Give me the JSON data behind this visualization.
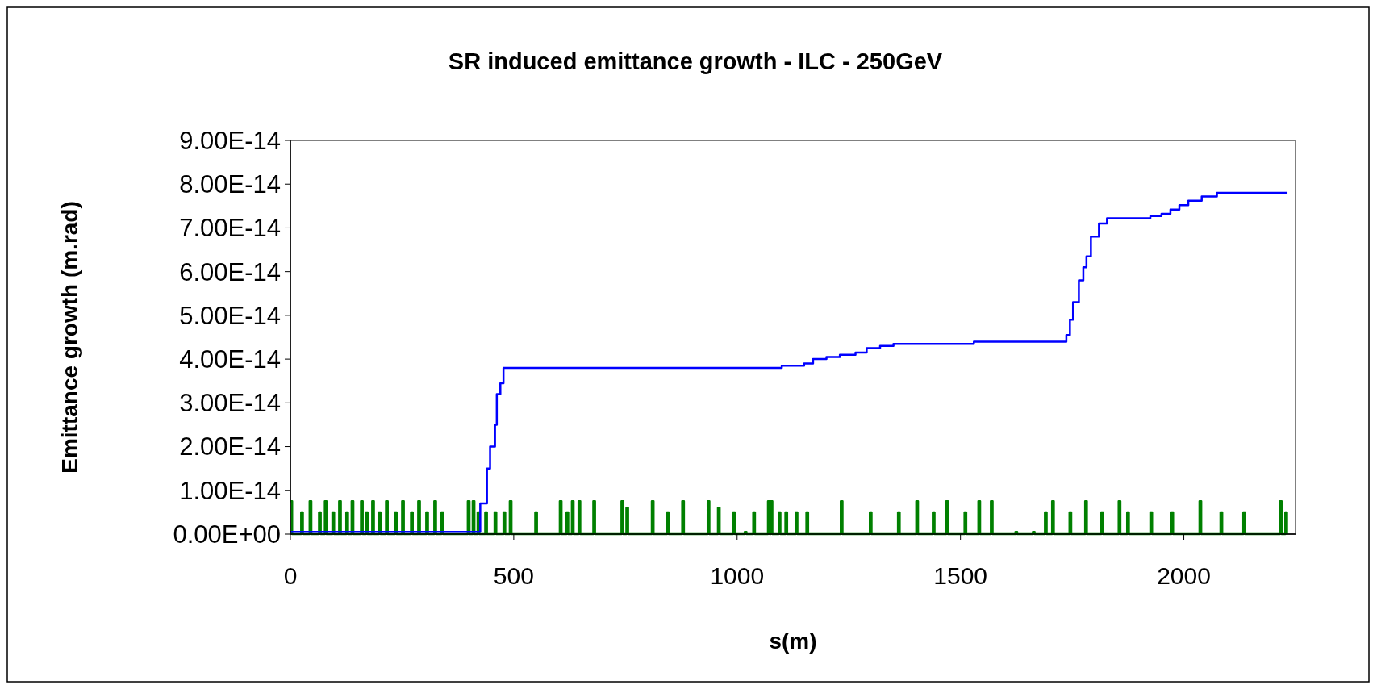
{
  "chart_data": {
    "type": "step",
    "title": "SR induced emittance growth - ILC - 250GeV",
    "xlabel": "s(m)",
    "ylabel": "Emittance growth (m.rad)",
    "xlim": [
      0,
      2250
    ],
    "xticks": [
      0,
      500,
      1000,
      1500,
      2000
    ],
    "ylim": [
      0,
      9e-14
    ],
    "yticks": [
      {
        "value": 0,
        "label": "0.00E+00"
      },
      {
        "value": 1e-14,
        "label": "1.00E-14"
      },
      {
        "value": 2e-14,
        "label": "2.00E-14"
      },
      {
        "value": 3e-14,
        "label": "3.00E-14"
      },
      {
        "value": 4e-14,
        "label": "4.00E-14"
      },
      {
        "value": 5e-14,
        "label": "5.00E-14"
      },
      {
        "value": 6e-14,
        "label": "6.00E-14"
      },
      {
        "value": 7e-14,
        "label": "7.00E-14"
      },
      {
        "value": 8e-14,
        "label": "8.00E-14"
      },
      {
        "value": 9e-14,
        "label": "9.00E-14"
      }
    ],
    "grid": false,
    "series": [
      {
        "color": "#008000",
        "x": [
          0,
          4,
          24,
          28,
          43,
          47,
          64,
          68,
          77,
          81,
          94,
          98,
          109,
          113,
          125,
          129,
          137,
          141,
          158,
          162,
          169,
          173,
          183,
          187,
          198,
          202,
          214,
          218,
          234,
          238,
          250,
          254,
          270,
          274,
          286,
          290,
          304,
          308,
          322,
          326,
          338,
          342,
          397,
          401,
          408,
          412,
          419,
          423,
          436,
          440,
          457,
          461,
          477,
          481,
          491,
          495,
          548,
          552,
          603,
          607,
          618,
          622,
          630,
          634,
          645,
          649,
          678,
          682,
          741,
          745,
          752,
          756,
          809,
          813,
          843,
          847,
          877,
          881,
          934,
          938,
          957,
          961,
          991,
          995,
          1017,
          1021,
          1036,
          1040,
          1069,
          1073,
          1075,
          1079,
          1093,
          1097,
          1108,
          1112,
          1131,
          1135,
          1155,
          1159,
          1232,
          1236,
          1297,
          1301,
          1360,
          1364,
          1401,
          1405,
          1438,
          1442,
          1468,
          1472,
          1509,
          1513,
          1540,
          1544,
          1568,
          1572,
          1623,
          1627,
          1662,
          1666,
          1689,
          1693,
          1705,
          1709,
          1744,
          1748,
          1779,
          1783,
          1815,
          1819,
          1854,
          1858,
          1873,
          1877,
          1925,
          1929,
          1972,
          1976,
          2035,
          2039,
          2082,
          2086,
          2133,
          2137,
          2215,
          2219,
          2227,
          2231
        ],
        "values": [
          7.5e-15,
          0,
          5e-15,
          0,
          7.5e-15,
          0,
          5e-15,
          0,
          7.5e-15,
          0,
          5e-15,
          0,
          7.5e-15,
          0,
          5e-15,
          0,
          7.5e-15,
          0,
          7.5e-15,
          0,
          5e-15,
          0,
          7.5e-15,
          0,
          5e-15,
          0,
          7.5e-15,
          0,
          5e-15,
          0,
          7.5e-15,
          0,
          5e-15,
          0,
          7.5e-15,
          0,
          5e-15,
          0,
          7.5e-15,
          0,
          5e-15,
          0,
          7.5e-15,
          0,
          7.5e-15,
          0,
          5e-15,
          0,
          5e-15,
          0,
          5e-15,
          0,
          5e-15,
          0,
          7.5e-15,
          0,
          5e-15,
          0,
          7.5e-15,
          0,
          5e-15,
          0,
          7.5e-15,
          0,
          7.5e-15,
          0,
          7.5e-15,
          0,
          7.5e-15,
          0,
          6e-15,
          0,
          7.5e-15,
          0,
          5e-15,
          0,
          7.5e-15,
          0,
          7.5e-15,
          0,
          6e-15,
          0,
          5e-15,
          0,
          5e-16,
          0,
          5e-15,
          0,
          7.5e-15,
          0,
          7.5e-15,
          0,
          5e-15,
          0,
          5e-15,
          0,
          5e-15,
          0,
          5e-15,
          0,
          7.5e-15,
          0,
          5e-15,
          0,
          5e-15,
          0,
          7.5e-15,
          0,
          5e-15,
          0,
          7.5e-15,
          0,
          5e-15,
          0,
          7.5e-15,
          0,
          7.5e-15,
          0,
          5e-16,
          0,
          5e-16,
          0,
          5e-15,
          0,
          7.5e-15,
          0,
          5e-15,
          0,
          7.5e-15,
          0,
          5e-15,
          0,
          7.5e-15,
          0,
          5e-15,
          0,
          5e-15,
          0,
          5e-15,
          0,
          7.5e-15,
          0,
          5e-15,
          0,
          5e-15,
          0,
          7.5e-15,
          0,
          5e-15,
          0
        ]
      },
      {
        "color": "#0000ff",
        "x": [
          0,
          410,
          425,
          440,
          447,
          458,
          462,
          470,
          477,
          1100,
          1150,
          1170,
          1200,
          1230,
          1265,
          1290,
          1320,
          1350,
          1530,
          1737,
          1745,
          1752,
          1765,
          1775,
          1782,
          1792,
          1810,
          1828,
          1925,
          1950,
          1970,
          1990,
          2010,
          2040,
          2074,
          2232
        ],
        "values": [
          5e-16,
          5e-16,
          7e-15,
          1.5e-14,
          2e-14,
          2.5e-14,
          3.2e-14,
          3.45e-14,
          3.8e-14,
          3.85e-14,
          3.9e-14,
          4e-14,
          4.05e-14,
          4.1e-14,
          4.15e-14,
          4.25e-14,
          4.3e-14,
          4.35e-14,
          4.4e-14,
          4.55e-14,
          4.9e-14,
          5.3e-14,
          5.8e-14,
          6.1e-14,
          6.35e-14,
          6.8e-14,
          7.1e-14,
          7.22e-14,
          7.27e-14,
          7.32e-14,
          7.42e-14,
          7.52e-14,
          7.62e-14,
          7.72e-14,
          7.8e-14,
          7.8e-14
        ]
      }
    ]
  }
}
